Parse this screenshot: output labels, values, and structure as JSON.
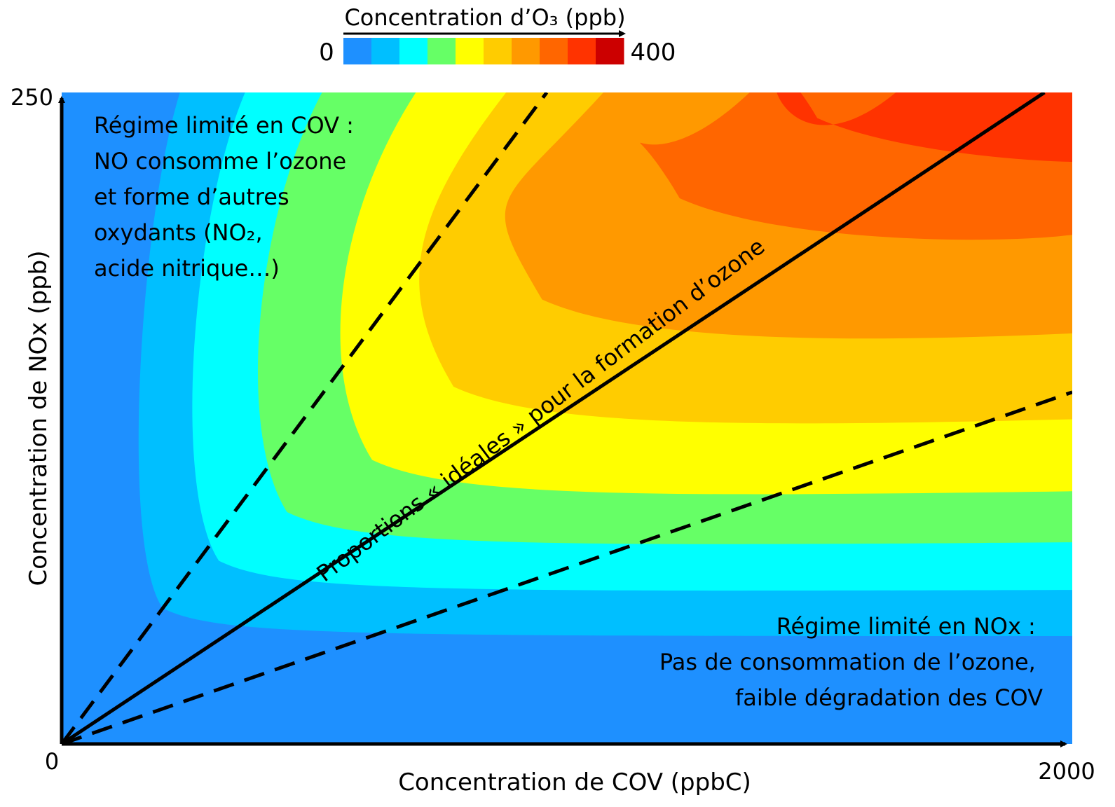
{
  "colorbar": {
    "title": "Concentration d’O₃ (ppb)",
    "min_label": "0",
    "max_label": "400",
    "colors": [
      "#1e90ff",
      "#00bfff",
      "#00ffff",
      "#66ff66",
      "#ffff00",
      "#ffcc00",
      "#ff9900",
      "#ff6600",
      "#ff3300",
      "#cc0000"
    ]
  },
  "chart_data": {
    "type": "heatmap",
    "title": "",
    "xlabel": "Concentration de COV (ppbC)",
    "ylabel": "Concentration de NOx (ppb)",
    "xlim": [
      0,
      2000
    ],
    "ylim": [
      0,
      250
    ],
    "x_ticks": [
      "0",
      "2000"
    ],
    "y_ticks": [
      "250"
    ],
    "z_range": [
      0,
      400
    ],
    "z_levels": 10,
    "lines": [
      {
        "style": "solid",
        "points": [
          [
            0,
            0
          ],
          [
            1945,
            250
          ]
        ]
      },
      {
        "style": "dashed",
        "points": [
          [
            0,
            0
          ],
          [
            960,
            250
          ]
        ]
      },
      {
        "style": "dashed",
        "points": [
          [
            0,
            0
          ],
          [
            2000,
            135
          ]
        ]
      }
    ],
    "annotations": [
      {
        "text_lines": [
          "Régime limité en COV :",
          "NO consomme l’ozone",
          "et forme d’autres",
          "oxydants (NO₂,",
          "acide nitrique…)"
        ]
      },
      {
        "text_lines": [
          "Régime limité en NOx :",
          "Pas de consommation de l’ozone,",
          "faible dégradation des COV"
        ]
      },
      {
        "text_lines": [
          "Proportions « idéales » pour la formation d’ozone"
        ]
      }
    ]
  }
}
